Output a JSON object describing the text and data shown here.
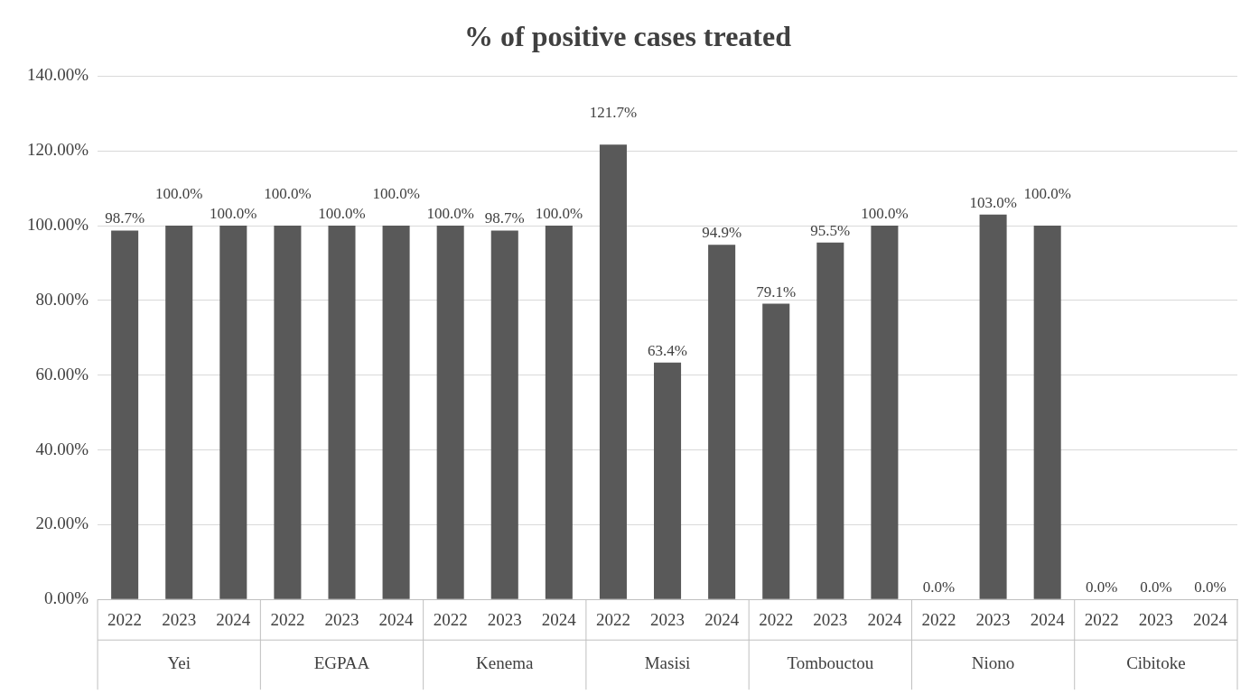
{
  "chart_data": {
    "type": "bar",
    "title": "% of positive cases treated",
    "categories": [
      "2022",
      "2023",
      "2024",
      "2022",
      "2023",
      "2024",
      "2022",
      "2023",
      "2024",
      "2022",
      "2023",
      "2024",
      "2022",
      "2023",
      "2024",
      "2022",
      "2023",
      "2024",
      "2022",
      "2023",
      "2024"
    ],
    "annotations": [
      "Yei",
      "EGPAA",
      "Kenema",
      "Masisi",
      "Tombouctou",
      "Niono",
      "Cibitoke"
    ],
    "values": [
      98.7,
      100,
      100,
      100,
      100,
      100,
      100,
      98.7,
      100,
      121.7,
      63.4,
      94.9,
      79.1,
      95.5,
      100,
      0,
      103,
      100,
      0,
      0,
      0
    ],
    "value_labels": [
      "98.7%",
      "100.0%",
      "100.0%",
      "100.0%",
      "100.0%",
      "100.0%",
      "100.0%",
      "98.7%",
      "100.0%",
      "121.7%",
      "63.4%",
      "94.9%",
      "79.1%",
      "95.5%",
      "100.0%",
      "0.0%",
      "103.0%",
      "100.0%",
      "0.0%",
      "0.0%",
      "0.0%"
    ],
    "color": "#595959",
    "ylim": [
      0,
      140
    ],
    "yticks": [
      {
        "value": 0,
        "label": "0.00%"
      },
      {
        "value": 20,
        "label": "20.00%"
      },
      {
        "value": 40,
        "label": "40.00%"
      },
      {
        "value": 60,
        "label": "60.00%"
      },
      {
        "value": 80,
        "label": "80.00%"
      },
      {
        "value": 100,
        "label": "100.00%"
      },
      {
        "value": 120,
        "label": "120.00%"
      },
      {
        "value": 140,
        "label": "140.00%"
      }
    ],
    "grid": "y",
    "legend": false
  }
}
